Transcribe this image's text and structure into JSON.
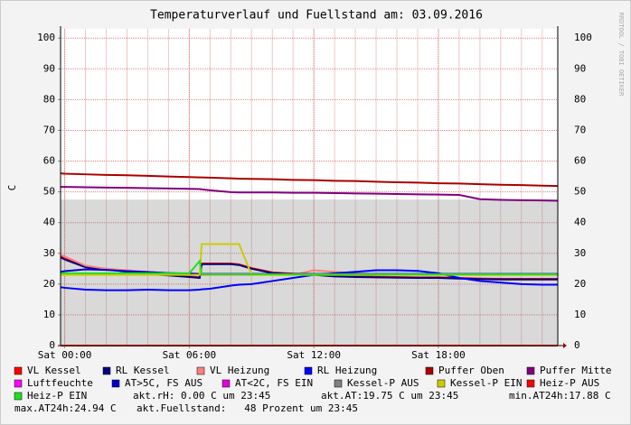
{
  "chart_data": {
    "type": "line",
    "title": "Temperaturverlauf und Fuellstand am: 03.09.2016",
    "y_label": "C",
    "watermark": "RRDTOOL / TOBI OETIKER",
    "xlim": [
      -0.2,
      23.75
    ],
    "xticks": [
      {
        "value": 0,
        "label": "Sat 00:00"
      },
      {
        "value": 6,
        "label": "Sat 06:00"
      },
      {
        "value": 12,
        "label": "Sat 12:00"
      },
      {
        "value": 18,
        "label": "Sat 18:00"
      }
    ],
    "ylim": [
      0,
      103
    ],
    "yticks": [
      0,
      10,
      20,
      30,
      40,
      50,
      60,
      70,
      80,
      90,
      100
    ],
    "grid": true,
    "x": [
      -0.2,
      0,
      1,
      2,
      3,
      4,
      5,
      6,
      6.5,
      6.6,
      7,
      8,
      8.4,
      9,
      10,
      11,
      12,
      13,
      14,
      15,
      16,
      17,
      18,
      19,
      20,
      21,
      22,
      23,
      23.75
    ],
    "series": [
      {
        "name": "VL Kessel",
        "color": "#ff0000",
        "values": [
          29,
          28.3,
          25.8,
          25,
          24.2,
          23.4,
          23,
          22.5,
          22.2,
          26.7,
          26.7,
          26.7,
          26.4,
          25.2,
          23.8,
          23.4,
          23.2,
          22.7,
          22.5,
          22.4,
          22.3,
          22.2,
          22.2,
          22,
          21.8,
          21.7,
          21.7,
          21.7,
          21.7
        ]
      },
      {
        "name": "RL Kessel",
        "color": "#000080",
        "values": [
          28.7,
          28,
          25.5,
          24.8,
          24,
          23.2,
          22.8,
          22.3,
          22,
          26.5,
          26.5,
          26.5,
          26.2,
          25,
          23.6,
          23.2,
          23,
          22.5,
          22.3,
          22.2,
          22.1,
          22,
          22,
          21.8,
          21.6,
          21.5,
          21.5,
          21.5,
          21.5
        ]
      },
      {
        "name": "VL Heizung",
        "color": "#ff8080",
        "values": [
          29.5,
          29,
          26,
          25,
          24.5,
          24,
          23.5,
          23.5,
          23.3,
          23,
          23,
          23,
          23,
          23,
          23,
          23,
          24.5,
          24,
          23.5,
          23,
          23,
          23,
          23,
          23,
          23,
          23,
          23,
          23,
          23
        ]
      },
      {
        "name": "RL Heizung",
        "color": "#0000ff",
        "values": [
          19,
          18.8,
          18.2,
          18,
          18,
          18.2,
          18,
          18,
          18.2,
          18.3,
          18.5,
          19.5,
          19.8,
          20,
          21,
          22,
          23,
          23.5,
          24,
          24.5,
          24.5,
          24.3,
          23.5,
          22,
          21,
          20.5,
          20,
          19.8,
          19.8
        ]
      },
      {
        "name": "Puffer Oben",
        "color": "#aa0000",
        "values": [
          56,
          55.9,
          55.7,
          55.5,
          55.4,
          55.2,
          55,
          54.8,
          54.7,
          54.7,
          54.6,
          54.4,
          54.3,
          54.2,
          54.1,
          53.9,
          53.8,
          53.6,
          53.5,
          53.3,
          53.1,
          53,
          52.8,
          52.7,
          52.5,
          52.3,
          52.2,
          52,
          51.9
        ]
      },
      {
        "name": "Puffer Mitte",
        "color": "#800080",
        "values": [
          51.6,
          51.6,
          51.5,
          51.4,
          51.3,
          51.2,
          51.1,
          51,
          50.9,
          50.8,
          50.5,
          49.9,
          49.8,
          49.8,
          49.8,
          49.7,
          49.7,
          49.6,
          49.5,
          49.4,
          49.3,
          49.2,
          49.1,
          49,
          47.6,
          47.4,
          47.3,
          47.2,
          47.1
        ]
      },
      {
        "name": "Luftfeuchte",
        "color": "#ff00ff",
        "values": [
          0,
          0,
          0,
          0,
          0,
          0,
          0,
          0,
          0,
          0,
          0,
          0,
          0,
          0,
          0,
          0,
          0,
          0,
          0,
          0,
          0,
          0,
          0,
          0,
          0,
          0,
          0,
          0,
          0
        ]
      },
      {
        "name": "AT>5C, FS AUS",
        "color": "#0000cc",
        "values": [
          24,
          24.2,
          24.8,
          24.6,
          24.2,
          23.9,
          23.6,
          23.4,
          23.3,
          23.3,
          23.3,
          23.3,
          23.3,
          23.3,
          23.3,
          23.3,
          23.3,
          23.3,
          23.3,
          23.3,
          23.3,
          23.3,
          23.3,
          23.3,
          23.3,
          23.3,
          23.3,
          23.3,
          23.3
        ]
      },
      {
        "name": "AT<2C, FS EIN",
        "color": "#e000e0",
        "values": [
          0,
          0,
          0,
          0,
          0,
          0,
          0,
          0,
          0,
          0,
          0,
          0,
          0,
          0,
          0,
          0,
          0,
          0,
          0,
          0,
          0,
          0,
          0,
          0,
          0,
          0,
          0,
          0,
          0
        ]
      },
      {
        "name": "Kessel-P AUS",
        "color": "#808080",
        "area": true,
        "values": [
          47.5,
          47.5,
          47.5,
          47.5,
          47.5,
          47.5,
          47.5,
          47.5,
          47.5,
          47.5,
          47.5,
          47.5,
          47.5,
          47.5,
          47.5,
          47.5,
          47.5,
          47.5,
          47.5,
          47.5,
          47.5,
          47.5,
          47.5,
          47.5,
          47.5,
          47.5,
          47.5,
          47.5,
          47.5
        ]
      },
      {
        "name": "Kessel-P EIN",
        "color": "#cccc00",
        "values": [
          23,
          23,
          23,
          23,
          23,
          23,
          23,
          23,
          23,
          33,
          33,
          33,
          33,
          23,
          23,
          23,
          23,
          23,
          23,
          23,
          23,
          23,
          23,
          23,
          23,
          23,
          23,
          23,
          23
        ]
      },
      {
        "name": "Heiz-P AUS",
        "color": "#ff0000",
        "values": [
          0,
          0,
          0,
          0,
          0,
          0,
          0,
          0,
          0,
          0,
          0,
          0,
          0,
          0,
          0,
          0,
          0,
          0,
          0,
          0,
          0,
          0,
          0,
          0,
          0,
          0,
          0,
          0,
          0
        ]
      },
      {
        "name": "Heiz-P EIN",
        "color": "#22dd22",
        "values": [
          23.5,
          23.5,
          23.5,
          23.5,
          23.5,
          23.5,
          23.5,
          23.5,
          27.5,
          23.2,
          23.2,
          23.2,
          23.2,
          23.2,
          23.2,
          23.2,
          23.2,
          23.2,
          23.2,
          23.2,
          23.2,
          23.2,
          23.2,
          23.2,
          23.2,
          23.2,
          23.2,
          23.2,
          23.2
        ]
      }
    ],
    "comments": [
      "akt.rH: 0.00 C um 23:45",
      "akt.AT:19.75 C um 23:45",
      "min.AT24h:17.88 C",
      "max.AT24h:24.94 C",
      "akt.Fuellstand:   48 Prozent um 23:45"
    ]
  }
}
